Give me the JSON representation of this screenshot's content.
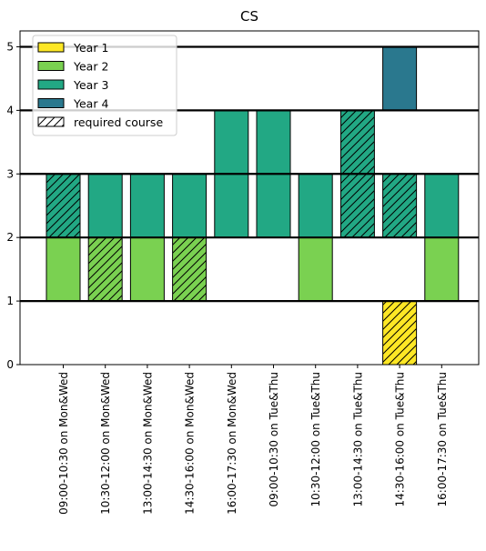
{
  "chart_data": {
    "type": "bar",
    "stacked": true,
    "title": "CS",
    "xlabel": "",
    "ylabel": "",
    "ylim": [
      0,
      5.25
    ],
    "yticks": [
      0,
      1,
      2,
      3,
      4,
      5
    ],
    "hlines": [
      1,
      2,
      3,
      4,
      5
    ],
    "legend_position": "top-left",
    "categories": [
      "09:00-10:30 on Mon&Wed",
      "10:30-12:00 on Mon&Wed",
      "13:00-14:30 on Mon&Wed",
      "14:30-16:00 on Mon&Wed",
      "16:00-17:30 on Mon&Wed",
      "09:00-10:30 on Tue&Thu",
      "10:30-12:00 on Tue&Thu",
      "13:00-14:30 on Tue&Thu",
      "14:30-16:00 on Tue&Thu",
      "16:00-17:30 on Tue&Thu"
    ],
    "legend": [
      {
        "label": "Year 1",
        "color": "#fde725",
        "hatch": false
      },
      {
        "label": "Year 2",
        "color": "#7ad151",
        "hatch": false
      },
      {
        "label": "Year 3",
        "color": "#22a884",
        "hatch": false
      },
      {
        "label": "Year 4",
        "color": "#2a788e",
        "hatch": false
      },
      {
        "label": "required course",
        "color": "#ffffff",
        "hatch": true
      }
    ],
    "segments": [
      {
        "category": 0,
        "year": "Year 2",
        "bottom": 1,
        "value": 1,
        "required": false
      },
      {
        "category": 0,
        "year": "Year 3",
        "bottom": 2,
        "value": 1,
        "required": true
      },
      {
        "category": 1,
        "year": "Year 2",
        "bottom": 1,
        "value": 1,
        "required": true
      },
      {
        "category": 1,
        "year": "Year 3",
        "bottom": 2,
        "value": 1,
        "required": false
      },
      {
        "category": 2,
        "year": "Year 2",
        "bottom": 1,
        "value": 1,
        "required": false
      },
      {
        "category": 2,
        "year": "Year 3",
        "bottom": 2,
        "value": 1,
        "required": false
      },
      {
        "category": 3,
        "year": "Year 2",
        "bottom": 1,
        "value": 1,
        "required": true
      },
      {
        "category": 3,
        "year": "Year 3",
        "bottom": 2,
        "value": 1,
        "required": false
      },
      {
        "category": 4,
        "year": "Year 3",
        "bottom": 2,
        "value": 1,
        "required": false
      },
      {
        "category": 4,
        "year": "Year 3",
        "bottom": 3,
        "value": 1,
        "required": false
      },
      {
        "category": 5,
        "year": "Year 3",
        "bottom": 2,
        "value": 1,
        "required": false
      },
      {
        "category": 5,
        "year": "Year 3",
        "bottom": 3,
        "value": 1,
        "required": false
      },
      {
        "category": 6,
        "year": "Year 2",
        "bottom": 1,
        "value": 1,
        "required": false
      },
      {
        "category": 6,
        "year": "Year 3",
        "bottom": 2,
        "value": 1,
        "required": false
      },
      {
        "category": 7,
        "year": "Year 3",
        "bottom": 2,
        "value": 1,
        "required": true
      },
      {
        "category": 7,
        "year": "Year 3",
        "bottom": 3,
        "value": 1,
        "required": true
      },
      {
        "category": 8,
        "year": "Year 1",
        "bottom": 0,
        "value": 1,
        "required": true
      },
      {
        "category": 8,
        "year": "Year 3",
        "bottom": 2,
        "value": 1,
        "required": true
      },
      {
        "category": 8,
        "year": "Year 4",
        "bottom": 4,
        "value": 1,
        "required": false
      },
      {
        "category": 9,
        "year": "Year 2",
        "bottom": 1,
        "value": 1,
        "required": false
      },
      {
        "category": 9,
        "year": "Year 3",
        "bottom": 2,
        "value": 1,
        "required": false
      }
    ]
  }
}
